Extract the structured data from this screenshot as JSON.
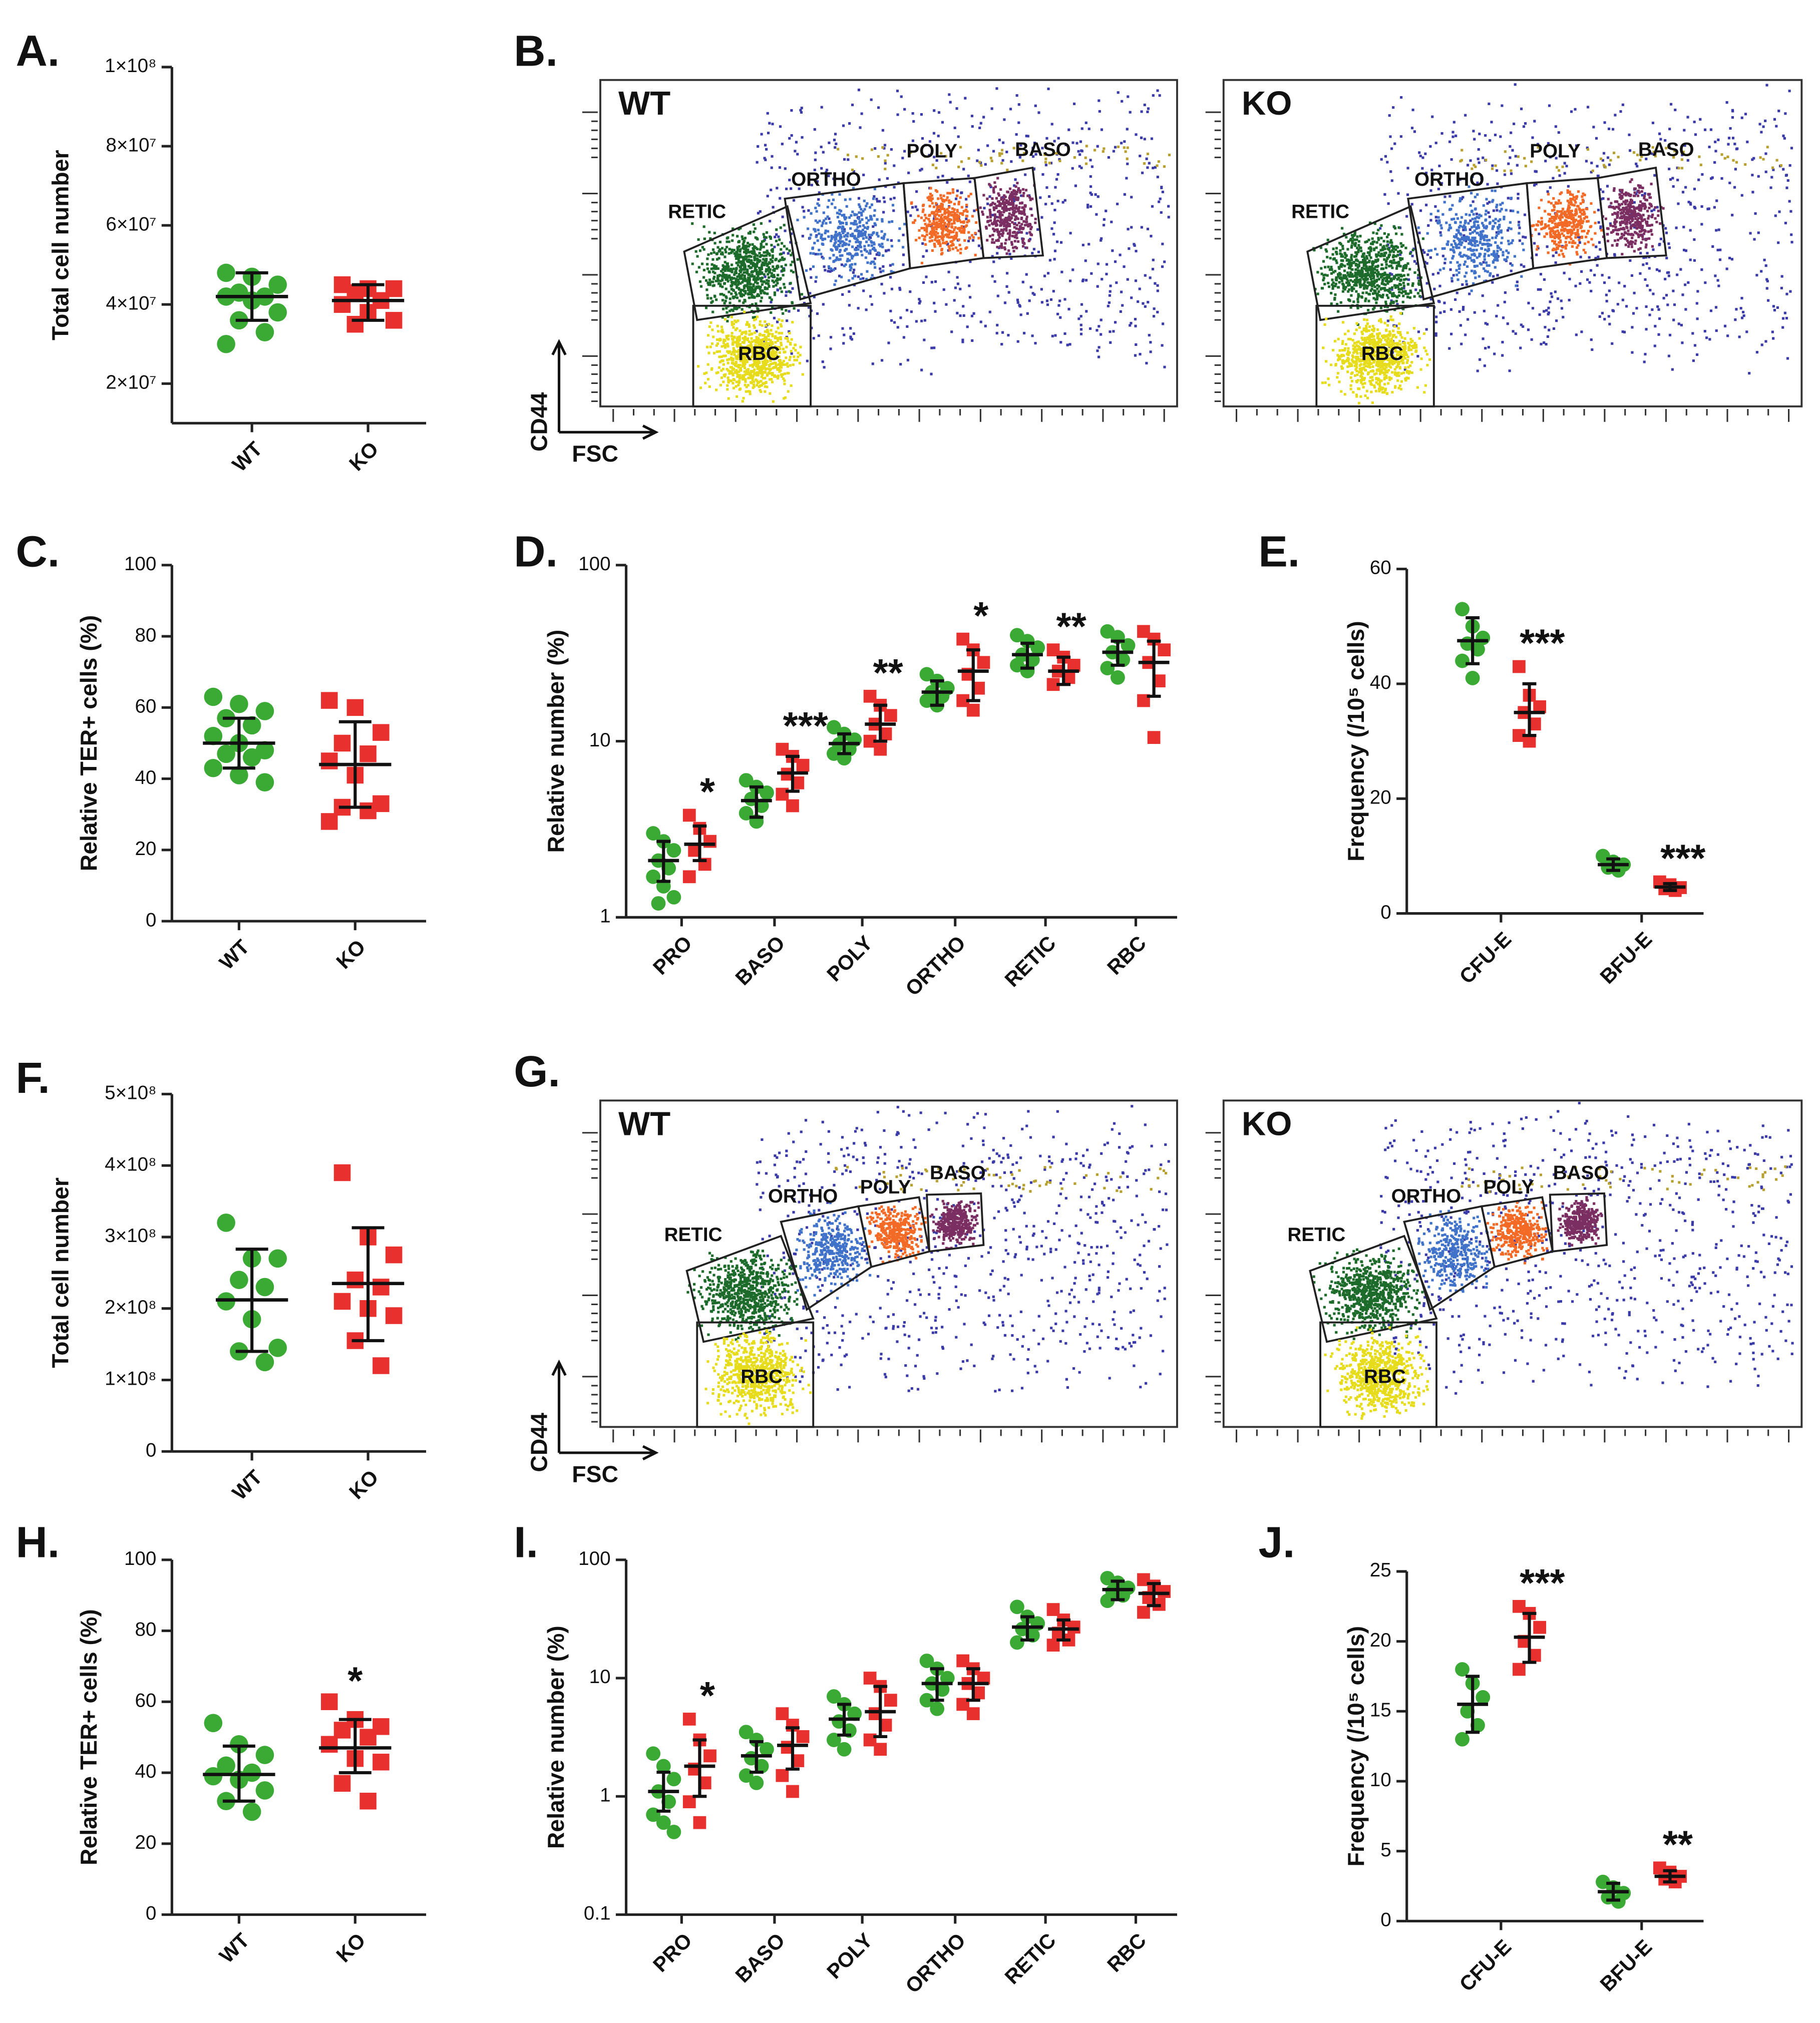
{
  "chart_data": [
    {
      "type": "dot",
      "panel": "A.",
      "ylabel": "Total cell number",
      "ylim": [
        10000000,
        100000000
      ],
      "yticks": [
        {
          "value": 20000000,
          "label": "2×10⁷"
        },
        {
          "value": 40000000,
          "label": "4×10⁷"
        },
        {
          "value": 60000000,
          "label": "6×10⁷"
        },
        {
          "value": 80000000,
          "label": "8×10⁷"
        },
        {
          "value": 100000000,
          "label": "1×10⁸"
        }
      ],
      "groups": [
        {
          "category": "WT",
          "color": "#3aaa35",
          "marker": "circle",
          "points": [
            48000000,
            47000000,
            45000000,
            43000000,
            42000000,
            42000000,
            41000000,
            38000000,
            36000000,
            33000000,
            30000000
          ],
          "mean": 42000000,
          "lower": 36000000,
          "upper": 48000000
        },
        {
          "category": "KO",
          "color": "#e8312f",
          "marker": "square",
          "points": [
            45000000,
            44000000,
            44000000,
            43000000,
            41000000,
            40000000,
            38000000,
            36000000,
            35000000
          ],
          "mean": 41000000,
          "lower": 36000000,
          "upper": 45000000
        }
      ]
    },
    {
      "type": "flow",
      "panel": "B.",
      "xlabel": "FSC",
      "ylabel": "CD44",
      "panels": [
        {
          "title": "WT",
          "gates": [
            "RETIC",
            "ORTHO",
            "POLY",
            "BASO",
            "RBC"
          ]
        },
        {
          "title": "KO",
          "gates": [
            "RETIC",
            "ORTHO",
            "POLY",
            "BASO",
            "RBC"
          ]
        }
      ]
    },
    {
      "type": "dot",
      "panel": "C.",
      "ylabel": "Relative TER+ cells (%)",
      "ylim": [
        0,
        100
      ],
      "yticks": [
        0,
        20,
        40,
        60,
        80,
        100
      ],
      "groups": [
        {
          "category": "WT",
          "color": "#3aaa35",
          "marker": "circle",
          "points": [
            63,
            61,
            59,
            57,
            55,
            52,
            50,
            48,
            47,
            46,
            43,
            41,
            39
          ],
          "mean": 50,
          "lower": 43,
          "upper": 57
        },
        {
          "category": "KO",
          "color": "#e8312f",
          "marker": "square",
          "points": [
            62,
            60,
            53,
            50,
            47,
            45,
            41,
            33,
            32,
            31,
            28
          ],
          "mean": 44,
          "lower": 32,
          "upper": 56
        }
      ]
    },
    {
      "type": "grouped_dot",
      "panel": "D.",
      "ylabel": "Relative number (%)",
      "log": true,
      "ylim": [
        1,
        100
      ],
      "yticks": [
        1,
        10,
        100
      ],
      "categories": [
        "PRO",
        "BASO",
        "POLY",
        "ORTHO",
        "RETIC",
        "RBC"
      ],
      "series": [
        {
          "color": "#3aaa35",
          "marker": "circle",
          "points": [
            [
              3.0,
              2.7,
              2.4,
              2.1,
              1.9,
              1.7,
              1.5,
              1.3,
              1.2
            ],
            [
              6.0,
              5.5,
              5.1,
              4.7,
              4.3,
              3.9,
              3.5
            ],
            [
              12,
              11,
              10.2,
              9.6,
              9.0,
              8.5,
              8.0
            ],
            [
              24,
              22,
              20,
              19,
              18,
              17,
              16
            ],
            [
              40,
              37,
              34,
              31,
              29,
              27,
              25
            ],
            [
              42,
              39,
              35,
              32,
              29,
              26,
              23
            ]
          ],
          "means": [
            2.1,
            4.6,
            9.7,
            19,
            31,
            32
          ],
          "lower": [
            1.6,
            3.7,
            8.5,
            16,
            26,
            27
          ],
          "upper": [
            2.7,
            5.5,
            11,
            22,
            36,
            37
          ],
          "stars": [
            null,
            null,
            null,
            null,
            null,
            null
          ]
        },
        {
          "color": "#e8312f",
          "marker": "square",
          "points": [
            [
              3.8,
              3.2,
              2.7,
              2.4,
              2.0,
              1.7
            ],
            [
              9.0,
              8.2,
              7.3,
              6.5,
              5.8,
              5.0,
              4.3
            ],
            [
              18,
              16,
              14,
              12.5,
              11,
              10,
              9.0
            ],
            [
              38,
              33,
              28,
              24,
              20,
              17,
              15
            ],
            [
              33,
              30,
              27,
              25,
              23,
              21
            ],
            [
              42,
              38,
              33,
              28,
              22,
              17,
              10.5
            ]
          ],
          "means": [
            2.6,
            6.6,
            12.5,
            25,
            25,
            28
          ],
          "lower": [
            2.1,
            5.2,
            10,
            17,
            21,
            18
          ],
          "upper": [
            3.3,
            8.2,
            16,
            33,
            30,
            37
          ],
          "stars": [
            "*",
            "***",
            "**",
            "*",
            "**",
            null
          ]
        }
      ]
    },
    {
      "type": "grouped_dot",
      "panel": "E.",
      "ylabel": "Frequency (/10⁵ cells)",
      "ylim": [
        0,
        60
      ],
      "yticks": [
        0,
        20,
        40,
        60
      ],
      "categories": [
        "CFU-E",
        "BFU-E"
      ],
      "series": [
        {
          "color": "#3aaa35",
          "marker": "circle",
          "points": [
            [
              53,
              50,
              48,
              47,
              46,
              44,
              41
            ],
            [
              10,
              9,
              8.5,
              8,
              7.5
            ]
          ],
          "means": [
            47.5,
            8.5
          ],
          "lower": [
            43.5,
            7.5
          ],
          "upper": [
            51.5,
            9.5
          ],
          "stars": [
            null,
            null
          ]
        },
        {
          "color": "#e8312f",
          "marker": "square",
          "points": [
            [
              43,
              38,
              36,
              35,
              33,
              31,
              30
            ],
            [
              5.5,
              5,
              4.5,
              4.3,
              4
            ]
          ],
          "means": [
            35,
            4.6
          ],
          "lower": [
            31,
            4
          ],
          "upper": [
            40,
            5.2
          ],
          "stars": [
            "***",
            "***"
          ]
        }
      ]
    },
    {
      "type": "dot",
      "panel": "F.",
      "ylabel": "Total cell number",
      "ylim": [
        0,
        500000000
      ],
      "yticks": [
        0,
        {
          "value": 100000000,
          "label": "1×10⁸"
        },
        {
          "value": 200000000,
          "label": "2×10⁸"
        },
        {
          "value": 300000000,
          "label": "3×10⁸"
        },
        {
          "value": 400000000,
          "label": "4×10⁸"
        },
        {
          "value": 500000000,
          "label": "5×10⁸"
        }
      ],
      "groups": [
        {
          "category": "WT",
          "color": "#3aaa35",
          "marker": "circle",
          "points": [
            320000000,
            270000000,
            270000000,
            240000000,
            230000000,
            210000000,
            185000000,
            145000000,
            140000000,
            125000000
          ],
          "mean": 212000000,
          "lower": 140000000,
          "upper": 283000000
        },
        {
          "category": "KO",
          "color": "#e8312f",
          "marker": "square",
          "points": [
            390000000,
            300000000,
            275000000,
            240000000,
            230000000,
            210000000,
            200000000,
            190000000,
            155000000,
            120000000
          ],
          "mean": 235000000,
          "lower": 155000000,
          "upper": 313000000
        }
      ]
    },
    {
      "type": "flow",
      "panel": "G.",
      "xlabel": "FSC",
      "ylabel": "CD44",
      "panels": [
        {
          "title": "WT",
          "gates": [
            "RETIC",
            "ORTHO",
            "POLY",
            "BASO",
            "RBC"
          ]
        },
        {
          "title": "KO",
          "gates": [
            "RETIC",
            "ORTHO",
            "POLY",
            "BASO",
            "RBC"
          ]
        }
      ]
    },
    {
      "type": "dot",
      "panel": "H.",
      "ylabel": "Relative TER+ cells (%)",
      "ylim": [
        0,
        100
      ],
      "yticks": [
        0,
        20,
        40,
        60,
        80,
        100
      ],
      "groups": [
        {
          "category": "WT",
          "color": "#3aaa35",
          "marker": "circle",
          "points": [
            54,
            48,
            45,
            42,
            40,
            39,
            38,
            35,
            32,
            29
          ],
          "mean": 39.5,
          "lower": 32,
          "upper": 47.5
        },
        {
          "category": "KO",
          "color": "#e8312f",
          "marker": "square",
          "points": [
            60,
            55,
            53,
            52,
            50,
            48,
            44,
            43,
            37,
            32
          ],
          "mean": 47,
          "lower": 40,
          "upper": 55,
          "star": "*"
        }
      ]
    },
    {
      "type": "grouped_dot",
      "panel": "I.",
      "ylabel": "Relative number (%)",
      "log": true,
      "ylim": [
        0.1,
        100
      ],
      "yticks": [
        0.1,
        1,
        10,
        100
      ],
      "categories": [
        "PRO",
        "BASO",
        "POLY",
        "ORTHO",
        "RETIC",
        "RBC"
      ],
      "series": [
        {
          "color": "#3aaa35",
          "marker": "circle",
          "points": [
            [
              2.3,
              1.8,
              1.4,
              1.1,
              0.9,
              0.7,
              0.6,
              0.5
            ],
            [
              3.5,
              3.0,
              2.5,
              2.1,
              1.8,
              1.5,
              1.3
            ],
            [
              7,
              6,
              5,
              4.3,
              3.6,
              3.0,
              2.5
            ],
            [
              14,
              12,
              10,
              9,
              8,
              6.5,
              5.5
            ],
            [
              40,
              33,
              29,
              26,
              23,
              20
            ],
            [
              70,
              64,
              58,
              54,
              50,
              45
            ]
          ],
          "means": [
            1.1,
            2.2,
            4.5,
            9,
            27,
            56
          ],
          "lower": [
            0.75,
            1.6,
            3.3,
            6.5,
            21,
            46
          ],
          "upper": [
            1.6,
            2.9,
            6,
            12,
            33,
            66
          ],
          "stars": [
            null,
            null,
            null,
            null,
            null,
            null
          ]
        },
        {
          "color": "#e8312f",
          "marker": "square",
          "points": [
            [
              4.5,
              3.0,
              2.2,
              1.7,
              1.3,
              0.9,
              0.6
            ],
            [
              5,
              4,
              3.2,
              2.6,
              2.0,
              1.5,
              1.1
            ],
            [
              10,
              8.5,
              6.5,
              5,
              4,
              3,
              2.5
            ],
            [
              14,
              12,
              10,
              9,
              7.5,
              6,
              5
            ],
            [
              38,
              31,
              27,
              24,
              21,
              19
            ],
            [
              68,
              60,
              54,
              48,
              42,
              36
            ]
          ],
          "means": [
            1.8,
            2.7,
            5.2,
            9,
            26,
            52
          ],
          "lower": [
            1.0,
            1.7,
            3.2,
            6.5,
            21,
            41
          ],
          "upper": [
            3.0,
            3.8,
            8.5,
            12,
            31,
            63
          ],
          "stars": [
            "*",
            null,
            null,
            null,
            null,
            null
          ]
        }
      ]
    },
    {
      "type": "grouped_dot",
      "panel": "J.",
      "ylabel": "Frequency (/10⁵ cells)",
      "ylim": [
        0,
        25
      ],
      "yticks": [
        0,
        5,
        10,
        15,
        20,
        25
      ],
      "categories": [
        "CFU-E",
        "BFU-E"
      ],
      "series": [
        {
          "color": "#3aaa35",
          "marker": "circle",
          "points": [
            [
              18,
              17,
              16,
              15,
              14,
              13
            ],
            [
              2.8,
              2.4,
              2,
              1.7,
              1.4
            ]
          ],
          "means": [
            15.5,
            2.1
          ],
          "lower": [
            13.5,
            1.5
          ],
          "upper": [
            17.5,
            2.7
          ],
          "stars": [
            null,
            null
          ]
        },
        {
          "color": "#e8312f",
          "marker": "square",
          "points": [
            [
              22.5,
              22,
              21,
              20,
              19,
              18
            ],
            [
              3.8,
              3.5,
              3.2,
              3,
              2.8
            ]
          ],
          "means": [
            20.3,
            3.2
          ],
          "lower": [
            18.5,
            2.8
          ],
          "upper": [
            22,
            3.6
          ],
          "stars": [
            "***",
            "**"
          ]
        }
      ]
    }
  ]
}
